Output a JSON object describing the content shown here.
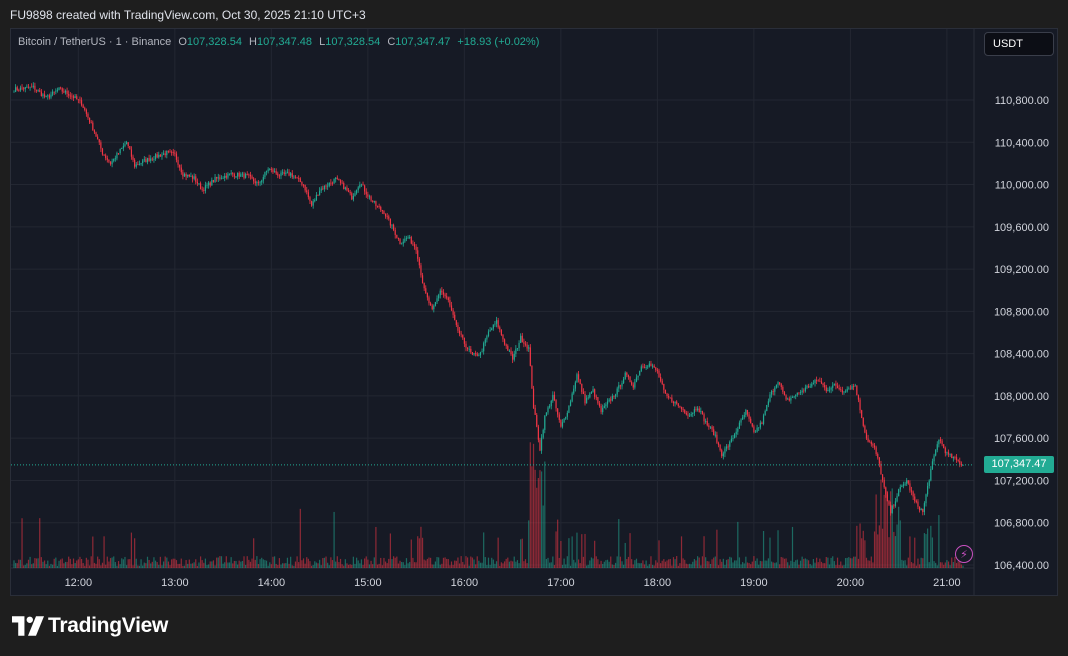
{
  "header": {
    "credit": "FU9898 created with TradingView.com, Oct 30, 2025 21:10 UTC+3"
  },
  "legend": {
    "symbol": "Bitcoin / TetherUS · 1 · Binance",
    "open_label": "O",
    "open": "107,328.54",
    "high_label": "H",
    "high": "107,347.48",
    "low_label": "L",
    "low": "107,328.54",
    "close_label": "C",
    "close": "107,347.47",
    "change": "+18.93 (+0.02%)"
  },
  "currency": "USDT",
  "last_price_label": "107,347.47",
  "brand": "TradingView",
  "colors": {
    "up": "#22ab94",
    "down": "#f23645",
    "background": "#161a25",
    "grid": "#232732"
  },
  "chart_data": {
    "type": "candlestick",
    "interval": "1m",
    "y_ticks": [
      106400,
      106800,
      107200,
      107600,
      108000,
      108400,
      108800,
      109200,
      109600,
      110000,
      110400,
      110800
    ],
    "y_tick_labels": [
      "106,400.00",
      "106,800.00",
      "107,200.00",
      "107,600.00",
      "108,000.00",
      "108,400.00",
      "108,800.00",
      "109,200.00",
      "109,600.00",
      "110,000.00",
      "110,400.00",
      "110,800.00"
    ],
    "x_tick_labels": [
      "12:00",
      "13:00",
      "14:00",
      "15:00",
      "16:00",
      "17:00",
      "18:00",
      "19:00",
      "20:00",
      "21:00"
    ],
    "ylim": [
      106400,
      111300
    ],
    "x_range": [
      "11:20",
      "21:10"
    ],
    "last_price": 107347.47,
    "price_path": [
      [
        "11:20",
        110900
      ],
      [
        "11:32",
        110920
      ],
      [
        "11:40",
        110820
      ],
      [
        "11:48",
        110900
      ],
      [
        "11:55",
        110850
      ],
      [
        "12:02",
        110770
      ],
      [
        "12:10",
        110500
      ],
      [
        "12:15",
        110300
      ],
      [
        "12:20",
        110200
      ],
      [
        "12:25",
        110300
      ],
      [
        "12:30",
        110400
      ],
      [
        "12:35",
        110180
      ],
      [
        "12:45",
        110250
      ],
      [
        "12:55",
        110300
      ],
      [
        "13:00",
        110280
      ],
      [
        "13:05",
        110100
      ],
      [
        "13:12",
        110060
      ],
      [
        "13:17",
        109950
      ],
      [
        "13:25",
        110050
      ],
      [
        "13:35",
        110100
      ],
      [
        "13:45",
        110080
      ],
      [
        "13:52",
        110000
      ],
      [
        "13:58",
        110150
      ],
      [
        "14:05",
        110090
      ],
      [
        "14:12",
        110100
      ],
      [
        "14:20",
        110000
      ],
      [
        "14:25",
        109800
      ],
      [
        "14:30",
        109950
      ],
      [
        "14:35",
        110000
      ],
      [
        "14:40",
        110050
      ],
      [
        "14:45",
        109980
      ],
      [
        "14:50",
        109880
      ],
      [
        "14:55",
        110020
      ],
      [
        "15:00",
        109900
      ],
      [
        "15:05",
        109800
      ],
      [
        "15:10",
        109740
      ],
      [
        "15:15",
        109600
      ],
      [
        "15:20",
        109450
      ],
      [
        "15:25",
        109500
      ],
      [
        "15:30",
        109400
      ],
      [
        "15:35",
        109000
      ],
      [
        "15:40",
        108800
      ],
      [
        "15:45",
        109000
      ],
      [
        "15:50",
        108900
      ],
      [
        "15:55",
        108650
      ],
      [
        "16:00",
        108500
      ],
      [
        "16:05",
        108380
      ],
      [
        "16:10",
        108400
      ],
      [
        "16:15",
        108600
      ],
      [
        "16:20",
        108700
      ],
      [
        "16:25",
        108500
      ],
      [
        "16:30",
        108350
      ],
      [
        "16:35",
        108550
      ],
      [
        "16:40",
        108450
      ],
      [
        "16:43",
        107900
      ],
      [
        "16:47",
        107500
      ],
      [
        "16:50",
        107800
      ],
      [
        "16:55",
        108000
      ],
      [
        "17:00",
        107700
      ],
      [
        "17:05",
        107900
      ],
      [
        "17:10",
        108200
      ],
      [
        "17:15",
        107950
      ],
      [
        "17:20",
        108050
      ],
      [
        "17:25",
        107850
      ],
      [
        "17:30",
        107950
      ],
      [
        "17:35",
        108050
      ],
      [
        "17:40",
        108200
      ],
      [
        "17:45",
        108100
      ],
      [
        "17:50",
        108280
      ],
      [
        "17:55",
        108300
      ],
      [
        "18:00",
        108230
      ],
      [
        "18:05",
        108000
      ],
      [
        "18:10",
        107950
      ],
      [
        "18:15",
        107880
      ],
      [
        "18:20",
        107820
      ],
      [
        "18:25",
        107900
      ],
      [
        "18:30",
        107750
      ],
      [
        "18:35",
        107650
      ],
      [
        "18:40",
        107450
      ],
      [
        "18:45",
        107550
      ],
      [
        "18:50",
        107700
      ],
      [
        "18:55",
        107850
      ],
      [
        "19:00",
        107650
      ],
      [
        "19:05",
        107750
      ],
      [
        "19:10",
        108000
      ],
      [
        "19:15",
        108150
      ],
      [
        "19:20",
        107950
      ],
      [
        "19:25",
        108000
      ],
      [
        "19:30",
        108050
      ],
      [
        "19:35",
        108100
      ],
      [
        "19:40",
        108150
      ],
      [
        "19:45",
        108060
      ],
      [
        "19:50",
        108100
      ],
      [
        "19:55",
        108050
      ],
      [
        "20:00",
        108080
      ],
      [
        "20:03",
        108100
      ],
      [
        "20:07",
        107800
      ],
      [
        "20:10",
        107600
      ],
      [
        "20:15",
        107500
      ],
      [
        "20:18",
        107350
      ],
      [
        "20:22",
        107050
      ],
      [
        "20:25",
        106900
      ],
      [
        "20:30",
        107100
      ],
      [
        "20:35",
        107200
      ],
      [
        "20:40",
        107000
      ],
      [
        "20:45",
        106900
      ],
      [
        "20:50",
        107300
      ],
      [
        "20:55",
        107600
      ],
      [
        "21:00",
        107450
      ],
      [
        "21:05",
        107400
      ],
      [
        "21:10",
        107347
      ]
    ]
  }
}
